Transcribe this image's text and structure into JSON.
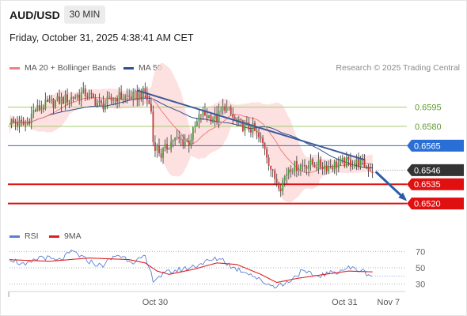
{
  "header": {
    "symbol": "AUD/USD",
    "interval": "30 MIN",
    "datetime": "Friday, October 31, 2025 4:38:41 AM CET"
  },
  "legend": {
    "ma20_label": "MA 20 + Bollinger Bands",
    "ma50_label": "MA 50",
    "ma20_color": "#f08080",
    "ma50_color": "#2f4f8f",
    "credit": "Research © 2025 Trading Central"
  },
  "rsi_legend": {
    "rsi_label": "RSI",
    "ma9_label": "9MA",
    "rsi_color": "#5b7fd6",
    "ma9_color": "#e02020"
  },
  "chart_data": [
    {
      "type": "candlestick",
      "title": "",
      "ylim": [
        0.6505,
        0.6612
      ],
      "price_scale_ticks": [
        0.6595,
        0.658
      ],
      "level_lines": [
        {
          "value": 0.6595,
          "label": "0.6595",
          "kind": "resistance",
          "color": "#a4cd72"
        },
        {
          "value": 0.658,
          "label": "0.6580",
          "kind": "resistance",
          "color": "#a4cd72"
        },
        {
          "value": 0.6565,
          "label": "0.6565",
          "kind": "pivot",
          "color": "#2a6fd6"
        },
        {
          "value": 0.6546,
          "label": "0.6546",
          "kind": "last-price",
          "color": "#333333"
        },
        {
          "value": 0.6535,
          "label": "0.6535",
          "kind": "support",
          "color": "#e01010"
        },
        {
          "value": 0.652,
          "label": "0.6520",
          "kind": "support",
          "color": "#e01010"
        }
      ],
      "x_ticks": [
        {
          "label": "Oct 30",
          "bar": 73
        },
        {
          "label": "Oct 31",
          "bar": 168
        },
        {
          "label": "Nov 7",
          "bar": 190
        }
      ],
      "bars": 182,
      "keypoints": [
        {
          "bar": 0,
          "price": 0.6584
        },
        {
          "bar": 8,
          "price": 0.6581
        },
        {
          "bar": 12,
          "price": 0.6592
        },
        {
          "bar": 20,
          "price": 0.6598
        },
        {
          "bar": 30,
          "price": 0.6602
        },
        {
          "bar": 38,
          "price": 0.6606
        },
        {
          "bar": 46,
          "price": 0.6596
        },
        {
          "bar": 54,
          "price": 0.6603
        },
        {
          "bar": 62,
          "price": 0.6603
        },
        {
          "bar": 68,
          "price": 0.6606
        },
        {
          "bar": 71,
          "price": 0.6592
        },
        {
          "bar": 72,
          "price": 0.6568
        },
        {
          "bar": 76,
          "price": 0.6558
        },
        {
          "bar": 82,
          "price": 0.657
        },
        {
          "bar": 90,
          "price": 0.6568
        },
        {
          "bar": 96,
          "price": 0.659
        },
        {
          "bar": 104,
          "price": 0.6586
        },
        {
          "bar": 108,
          "price": 0.6596
        },
        {
          "bar": 114,
          "price": 0.6582
        },
        {
          "bar": 122,
          "price": 0.6578
        },
        {
          "bar": 128,
          "price": 0.6564
        },
        {
          "bar": 132,
          "price": 0.6542
        },
        {
          "bar": 136,
          "price": 0.6534
        },
        {
          "bar": 140,
          "price": 0.6548
        },
        {
          "bar": 150,
          "price": 0.6551
        },
        {
          "bar": 160,
          "price": 0.6549
        },
        {
          "bar": 168,
          "price": 0.6552
        },
        {
          "bar": 176,
          "price": 0.6552
        },
        {
          "bar": 182,
          "price": 0.6546
        }
      ],
      "trendline": {
        "start": {
          "bar": 64,
          "price": 0.6608
        },
        "end": {
          "bar": 178,
          "price": 0.6554
        }
      },
      "projection_arrow": {
        "start": {
          "bar": 182,
          "price": 0.6546
        },
        "end": {
          "bar": 196,
          "price": 0.6522
        }
      }
    },
    {
      "type": "line",
      "title": "",
      "ylim": [
        22,
        78
      ],
      "y_ticks": [
        70,
        50,
        30
      ],
      "series": [
        {
          "name": "RSI",
          "keypoints": [
            {
              "bar": 0,
              "value": 62
            },
            {
              "bar": 8,
              "value": 52
            },
            {
              "bar": 16,
              "value": 64
            },
            {
              "bar": 24,
              "value": 58
            },
            {
              "bar": 32,
              "value": 70
            },
            {
              "bar": 38,
              "value": 60
            },
            {
              "bar": 46,
              "value": 52
            },
            {
              "bar": 54,
              "value": 66
            },
            {
              "bar": 62,
              "value": 58
            },
            {
              "bar": 68,
              "value": 62
            },
            {
              "bar": 72,
              "value": 36
            },
            {
              "bar": 80,
              "value": 45
            },
            {
              "bar": 90,
              "value": 50
            },
            {
              "bar": 98,
              "value": 57
            },
            {
              "bar": 106,
              "value": 62
            },
            {
              "bar": 112,
              "value": 50
            },
            {
              "bar": 120,
              "value": 44
            },
            {
              "bar": 126,
              "value": 34
            },
            {
              "bar": 132,
              "value": 28
            },
            {
              "bar": 138,
              "value": 30
            },
            {
              "bar": 146,
              "value": 45
            },
            {
              "bar": 154,
              "value": 40
            },
            {
              "bar": 162,
              "value": 44
            },
            {
              "bar": 170,
              "value": 50
            },
            {
              "bar": 176,
              "value": 47
            },
            {
              "bar": 182,
              "value": 40
            }
          ]
        },
        {
          "name": "9MA",
          "keypoints": [
            {
              "bar": 0,
              "value": 60
            },
            {
              "bar": 20,
              "value": 58
            },
            {
              "bar": 40,
              "value": 62
            },
            {
              "bar": 60,
              "value": 60
            },
            {
              "bar": 68,
              "value": 56
            },
            {
              "bar": 74,
              "value": 46
            },
            {
              "bar": 80,
              "value": 42
            },
            {
              "bar": 92,
              "value": 48
            },
            {
              "bar": 104,
              "value": 56
            },
            {
              "bar": 114,
              "value": 54
            },
            {
              "bar": 126,
              "value": 42
            },
            {
              "bar": 134,
              "value": 32
            },
            {
              "bar": 144,
              "value": 37
            },
            {
              "bar": 158,
              "value": 42
            },
            {
              "bar": 170,
              "value": 46
            },
            {
              "bar": 182,
              "value": 45
            }
          ]
        }
      ]
    }
  ]
}
